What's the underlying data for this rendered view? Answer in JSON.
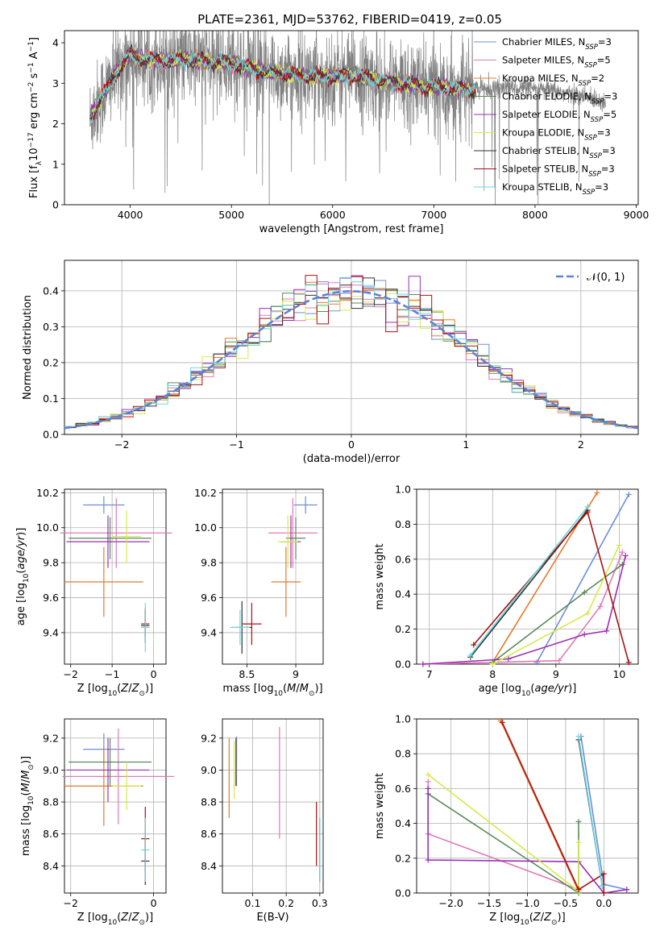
{
  "figure_title": "PLATE=2361, MJD=53762, FIBERID=0419, z=0.05",
  "legend_mid": "𝒩(0, 1)",
  "chart_data": [
    {
      "id": "spectrum",
      "type": "line",
      "title": "PLATE=2361, MJD=53762, FIBERID=0419, z=0.05",
      "xlabel": "wavelength [Angstrom, rest frame]",
      "ylabel": "Flux [f_λ 10^-17 erg cm^-2 s^-1 A^-1]",
      "xlim": [
        3350,
        9020
      ],
      "ylim": [
        0,
        4.3
      ],
      "xticks": [
        4000,
        5000,
        6000,
        7000,
        8000,
        9000
      ],
      "yticks": [
        0,
        1,
        2,
        3,
        4
      ],
      "grid": false,
      "legend_position": "top-right",
      "data_range": [
        3600,
        8700
      ],
      "model_range": [
        3600,
        7420
      ],
      "series": [
        {
          "name": "Chabrier MILES, N_SSP=3",
          "color": "#6a8fd8"
        },
        {
          "name": "Salpeter MILES, N_SSP=5",
          "color": "#e07ab8"
        },
        {
          "name": "Kroupa MILES, N_SSP=2",
          "color": "#e8782a"
        },
        {
          "name": "Chabrier ELODIE, N_SSP=3",
          "color": "#5a8a5a"
        },
        {
          "name": "Salpeter ELODIE, N_SSP=5",
          "color": "#9b2fb5"
        },
        {
          "name": "Kroupa ELODIE, N_SSP=3",
          "color": "#d7e84a"
        },
        {
          "name": "Chabrier STELIB, N_SSP=3",
          "color": "#333333"
        },
        {
          "name": "Salpeter STELIB, N_SSP=3",
          "color": "#a81010"
        },
        {
          "name": "Kroupa STELIB, N_SSP=3",
          "color": "#6ad8e0"
        }
      ],
      "continuum": [
        [
          3600,
          2.1
        ],
        [
          3700,
          2.6
        ],
        [
          3800,
          3.0
        ],
        [
          3900,
          3.4
        ],
        [
          4000,
          3.7
        ],
        [
          4100,
          3.6
        ],
        [
          4300,
          3.55
        ],
        [
          4500,
          3.6
        ],
        [
          4700,
          3.55
        ],
        [
          5000,
          3.5
        ],
        [
          5300,
          3.3
        ],
        [
          5600,
          3.2
        ],
        [
          5900,
          3.15
        ],
        [
          6200,
          3.2
        ],
        [
          6500,
          3.05
        ],
        [
          6800,
          2.95
        ],
        [
          7100,
          2.9
        ],
        [
          7400,
          2.85
        ],
        [
          7800,
          2.9
        ],
        [
          8200,
          2.8
        ],
        [
          8700,
          2.55
        ]
      ]
    },
    {
      "id": "residuals",
      "type": "bar",
      "xlabel": "(data-model)/error",
      "ylabel": "Normed distribution",
      "xlim": [
        -2.5,
        2.5
      ],
      "ylim": [
        0,
        0.485
      ],
      "xticks": [
        -2,
        -1,
        0,
        1,
        2
      ],
      "yticks": [
        0.0,
        0.1,
        0.2,
        0.3,
        0.4
      ],
      "grid": true,
      "legend_position": "top-right",
      "bin_width": 0.1,
      "reference_curve": {
        "name": "𝒩(0, 1)",
        "mean": 0,
        "sigma": 1,
        "color": "#5b82d6"
      }
    },
    {
      "id": "age-vs-Z",
      "type": "scatter",
      "xlabel": "Z [log10(Z/Z⊙)]",
      "ylabel": "age [log10(age/yr)]",
      "xlim": [
        -2.15,
        0.3
      ],
      "ylim": [
        9.22,
        10.22
      ],
      "xticks": [
        -2,
        -1,
        0
      ],
      "yticks": [
        9.4,
        9.6,
        9.8,
        10.0,
        10.2
      ],
      "grid": true,
      "errorbars": [
        {
          "color": "#6a8fd8",
          "x": -1.2,
          "xerr": 0.5,
          "y": 10.13,
          "yerr": 0.05
        },
        {
          "color": "#e07ab8",
          "x": -0.9,
          "xerr": 1.35,
          "y": 9.97,
          "yerr": 0.2
        },
        {
          "color": "#e8782a",
          "x": -1.2,
          "xerr": 0.95,
          "y": 9.69,
          "yerr": 0.2
        },
        {
          "color": "#5a8a5a",
          "x": -1.05,
          "xerr": 1.0,
          "y": 9.94,
          "yerr": 0.12
        },
        {
          "color": "#9b2fb5",
          "x": -1.1,
          "xerr": 1.0,
          "y": 9.92,
          "yerr": 0.15
        },
        {
          "color": "#d7e84a",
          "x": -0.65,
          "xerr": 0.35,
          "y": 9.95,
          "yerr": 0.15
        },
        {
          "color": "#333333",
          "x": -0.2,
          "xerr": 0.1,
          "y": 9.44,
          "yerr": 0.1
        },
        {
          "color": "#a81010",
          "x": -0.2,
          "xerr": 0.1,
          "y": 9.45,
          "yerr": 0.08
        },
        {
          "color": "#6ad8e0",
          "x": -0.2,
          "xerr": 0.1,
          "y": 9.43,
          "yerr": 0.14
        }
      ]
    },
    {
      "id": "age-vs-mass",
      "type": "scatter",
      "xlabel": "mass [log10(M/M⊙)]",
      "ylabel": "",
      "xlim": [
        8.25,
        9.28
      ],
      "ylim": [
        9.22,
        10.22
      ],
      "xticks": [
        8.5,
        9.0
      ],
      "yticks": [
        9.4,
        9.6,
        9.8,
        10.0,
        10.2
      ],
      "grid": true,
      "errorbars": [
        {
          "color": "#6a8fd8",
          "x": 9.1,
          "xerr": 0.12,
          "y": 10.13,
          "yerr": 0.05
        },
        {
          "color": "#e07ab8",
          "x": 8.97,
          "xerr": 0.25,
          "y": 9.97,
          "yerr": 0.2
        },
        {
          "color": "#e8782a",
          "x": 8.9,
          "xerr": 0.15,
          "y": 9.69,
          "yerr": 0.2
        },
        {
          "color": "#5a8a5a",
          "x": 9.0,
          "xerr": 0.1,
          "y": 9.94,
          "yerr": 0.12
        },
        {
          "color": "#9b2fb5",
          "x": 8.95,
          "xerr": 0.1,
          "y": 9.92,
          "yerr": 0.15
        },
        {
          "color": "#d7e84a",
          "x": 8.92,
          "xerr": 0.1,
          "y": 9.92,
          "yerr": 0.15
        },
        {
          "color": "#333333",
          "x": 8.45,
          "xerr": 0.1,
          "y": 9.43,
          "yerr": 0.15
        },
        {
          "color": "#a81010",
          "x": 8.55,
          "xerr": 0.1,
          "y": 9.45,
          "yerr": 0.12
        },
        {
          "color": "#6ad8e0",
          "x": 8.43,
          "xerr": 0.1,
          "y": 9.43,
          "yerr": 0.1
        }
      ]
    },
    {
      "id": "weight-vs-age",
      "type": "line",
      "xlabel": "age [log10(age/yr)]",
      "ylabel": "mass weight",
      "xlim": [
        6.8,
        10.3
      ],
      "ylim": [
        0,
        1.0
      ],
      "xticks": [
        7,
        8,
        9,
        10
      ],
      "yticks": [
        0.0,
        0.2,
        0.4,
        0.6,
        0.8,
        1.0
      ],
      "grid": true,
      "series": [
        {
          "color": "#6a8fd8",
          "points": [
            [
              8.7,
              0.01
            ],
            [
              10.15,
              0.97
            ]
          ]
        },
        {
          "color": "#e07ab8",
          "points": [
            [
              6.9,
              0.0
            ],
            [
              9.05,
              0.02
            ],
            [
              9.7,
              0.33
            ],
            [
              10.05,
              0.64
            ]
          ]
        },
        {
          "color": "#e8782a",
          "points": [
            [
              8.0,
              0.01
            ],
            [
              9.65,
              0.98
            ]
          ]
        },
        {
          "color": "#5a8a5a",
          "points": [
            [
              8.0,
              0.01
            ],
            [
              9.45,
              0.41
            ],
            [
              10.05,
              0.57
            ]
          ]
        },
        {
          "color": "#9b2fb5",
          "points": [
            [
              6.9,
              0.0
            ],
            [
              8.25,
              0.03
            ],
            [
              9.45,
              0.17
            ],
            [
              9.8,
              0.19
            ],
            [
              10.1,
              0.62
            ]
          ]
        },
        {
          "color": "#d7e84a",
          "points": [
            [
              8.0,
              0.0
            ],
            [
              9.5,
              0.29
            ],
            [
              10.0,
              0.68
            ]
          ]
        },
        {
          "color": "#333333",
          "points": [
            [
              7.65,
              0.04
            ],
            [
              9.5,
              0.88
            ]
          ]
        },
        {
          "color": "#a81010",
          "points": [
            [
              7.7,
              0.11
            ],
            [
              9.5,
              0.87
            ],
            [
              10.15,
              0.01
            ]
          ]
        },
        {
          "color": "#6ad8e0",
          "points": [
            [
              7.65,
              0.05
            ],
            [
              9.5,
              0.9
            ]
          ]
        }
      ]
    },
    {
      "id": "mass-vs-Z",
      "type": "scatter",
      "xlabel": "Z [log10(Z/Z⊙)]",
      "ylabel": "mass [log10(M/M⊙)]",
      "xlim": [
        -2.15,
        0.3
      ],
      "ylim": [
        8.23,
        9.32
      ],
      "xticks": [
        -2,
        0
      ],
      "yticks": [
        8.4,
        8.6,
        8.8,
        9.0,
        9.2
      ],
      "grid": true,
      "errorbars": [
        {
          "color": "#6a8fd8",
          "x": -1.2,
          "xerr": 0.5,
          "y": 9.13,
          "yerr": 0.1
        },
        {
          "color": "#e07ab8",
          "x": -0.85,
          "xerr": 1.35,
          "y": 8.96,
          "yerr": 0.3
        },
        {
          "color": "#e8782a",
          "x": -1.2,
          "xerr": 0.95,
          "y": 8.9,
          "yerr": 0.25
        },
        {
          "color": "#5a8a5a",
          "x": -1.05,
          "xerr": 1.0,
          "y": 9.05,
          "yerr": 0.15
        },
        {
          "color": "#9b2fb5",
          "x": -1.1,
          "xerr": 1.0,
          "y": 9.0,
          "yerr": 0.2
        },
        {
          "color": "#d7e84a",
          "x": -0.65,
          "xerr": 0.35,
          "y": 8.9,
          "yerr": 0.15
        },
        {
          "color": "#333333",
          "x": -0.2,
          "xerr": 0.1,
          "y": 8.43,
          "yerr": 0.15
        },
        {
          "color": "#a81010",
          "x": -0.2,
          "xerr": 0.1,
          "y": 8.57,
          "yerr": 0.2
        },
        {
          "color": "#6ad8e0",
          "x": -0.2,
          "xerr": 0.1,
          "y": 8.5,
          "yerr": 0.2
        }
      ]
    },
    {
      "id": "mass-vs-EBV",
      "type": "scatter",
      "xlabel": "E(B-V)",
      "ylabel": "",
      "xlim": [
        0.01,
        0.31
      ],
      "ylim": [
        8.23,
        9.32
      ],
      "xticks": [
        0.1,
        0.2,
        0.3
      ],
      "yticks": [
        8.4,
        8.6,
        8.8,
        9.0,
        9.2
      ],
      "grid": true,
      "errorbars": [
        {
          "color": "#6a8fd8",
          "x": 0.052,
          "xerr": 0,
          "y": 9.13,
          "yerr": 0.08
        },
        {
          "color": "#e07ab8",
          "x": 0.18,
          "xerr": 0,
          "y": 8.92,
          "yerr": 0.35
        },
        {
          "color": "#e8782a",
          "x": 0.03,
          "xerr": 0,
          "y": 8.95,
          "yerr": 0.25
        },
        {
          "color": "#5a8a5a",
          "x": 0.052,
          "xerr": 0,
          "y": 9.05,
          "yerr": 0.15
        },
        {
          "color": "#9b2fb5",
          "x": 0.05,
          "xerr": 0,
          "y": 9.05,
          "yerr": 0.15
        },
        {
          "color": "#d7e84a",
          "x": 0.045,
          "xerr": 0,
          "y": 9.0,
          "yerr": 0.18
        },
        {
          "color": "#333333",
          "x": 0.3,
          "xerr": 0,
          "y": 8.5,
          "yerr": 0.2
        },
        {
          "color": "#a81010",
          "x": 0.29,
          "xerr": 0,
          "y": 8.6,
          "yerr": 0.2
        },
        {
          "color": "#6ad8e0",
          "x": 0.3,
          "xerr": 0,
          "y": 8.5,
          "yerr": 0.2
        }
      ]
    },
    {
      "id": "weight-vs-Z",
      "type": "line",
      "xlabel": "Z [log10(Z/Z⊙)]",
      "ylabel": "mass weight",
      "xlim": [
        -2.45,
        0.45
      ],
      "ylim": [
        0,
        1.0
      ],
      "xticks": [
        -2.0,
        -1.5,
        -1.0,
        -0.5,
        0.0
      ],
      "yticks": [
        0.0,
        0.2,
        0.4,
        0.6,
        0.8,
        1.0
      ],
      "grid": true,
      "series": [
        {
          "color": "#6a8fd8",
          "points": [
            [
              0.3,
              0.02
            ],
            [
              0.0,
              0.05
            ],
            [
              -0.3,
              0.9
            ]
          ]
        },
        {
          "color": "#e07ab8",
          "points": [
            [
              -2.3,
              0.64
            ],
            [
              -2.3,
              0.34
            ],
            [
              -0.33,
              0.02
            ]
          ]
        },
        {
          "color": "#e8782a",
          "points": [
            [
              -1.35,
              0.99
            ],
            [
              -0.33,
              0.01
            ]
          ]
        },
        {
          "color": "#5a8a5a",
          "points": [
            [
              -2.3,
              0.57
            ],
            [
              -0.33,
              0.0
            ],
            [
              -0.33,
              0.41
            ]
          ]
        },
        {
          "color": "#9b2fb5",
          "points": [
            [
              -2.3,
              0.6
            ],
            [
              -2.3,
              0.19
            ],
            [
              -0.33,
              0.18
            ],
            [
              0.0,
              0.0
            ],
            [
              0.3,
              0.02
            ]
          ]
        },
        {
          "color": "#d7e84a",
          "points": [
            [
              -2.3,
              0.68
            ],
            [
              -0.33,
              0.01
            ],
            [
              -0.33,
              0.29
            ]
          ]
        },
        {
          "color": "#333333",
          "points": [
            [
              -0.33,
              0.88
            ],
            [
              -0.02,
              0.04
            ]
          ]
        },
        {
          "color": "#a81010",
          "points": [
            [
              -1.33,
              0.98
            ],
            [
              -0.33,
              0.02
            ],
            [
              0.0,
              0.11
            ],
            [
              0.0,
              0.0
            ]
          ]
        },
        {
          "color": "#6ad8e0",
          "points": [
            [
              -0.33,
              0.9
            ],
            [
              -0.02,
              0.04
            ]
          ]
        }
      ]
    }
  ]
}
